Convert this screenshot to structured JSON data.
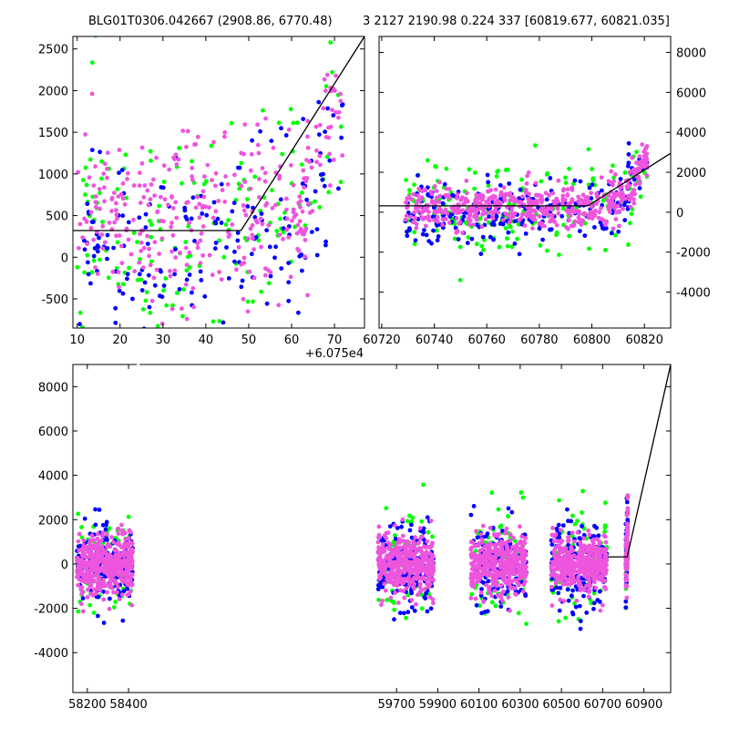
{
  "titles": {
    "left": "BLG01T0306.042667 (2908.86, 6770.48)",
    "right": "3 2127 2190.98 0.224 337 [60819.677, 60821.035]"
  },
  "colors": {
    "green": "#00ff00",
    "blue": "#0000ff",
    "magenta": "#ee55dd",
    "fit": "#000000"
  },
  "chart_data": [
    {
      "id": "zoom-left",
      "type": "scatter",
      "title": "BLG01T0306.042667 (2908.86, 6770.48)",
      "x_offset_label": "+6.075e4",
      "xlim": [
        9,
        77
      ],
      "ylim": [
        -850,
        2650
      ],
      "xticks": [
        10,
        20,
        30,
        40,
        50,
        60,
        70
      ],
      "yticks": [
        -500,
        0,
        500,
        1000,
        1500,
        2000,
        2500
      ],
      "ytick_side": "left",
      "series": [
        {
          "name": "green",
          "color": "#00ff00",
          "x_range": [
            10,
            72
          ],
          "y_center": 350,
          "y_spread": 650,
          "count": 150,
          "seed": 11
        },
        {
          "name": "blue",
          "color": "#0000ff",
          "x_range": [
            10,
            72
          ],
          "y_center": 250,
          "y_spread": 500,
          "count": 170,
          "seed": 23
        },
        {
          "name": "magenta",
          "color": "#ee55dd",
          "x_range": [
            10,
            72
          ],
          "y_center": 450,
          "y_spread": 500,
          "count": 330,
          "seed": 37
        }
      ],
      "fit_line": {
        "x": [
          9,
          48.2,
          77
        ],
        "y": [
          320,
          320,
          2650
        ]
      }
    },
    {
      "id": "zoom-right",
      "type": "scatter",
      "title": "3 2127 2190.98 0.224 337 [60819.677, 60821.035]",
      "xlim": [
        60719,
        60830
      ],
      "ylim": [
        -5800,
        8800
      ],
      "xticks": [
        60720,
        60740,
        60760,
        60780,
        60800,
        60820
      ],
      "yticks": [
        -4000,
        -2000,
        0,
        2000,
        4000,
        6000,
        8000
      ],
      "ytick_side": "right",
      "series": [
        {
          "name": "green",
          "color": "#00ff00",
          "x_range": [
            60729,
            60821
          ],
          "y_center": 100,
          "y_spread": 1100,
          "count": 180,
          "seed": 51
        },
        {
          "name": "blue",
          "color": "#0000ff",
          "x_range": [
            60729,
            60821
          ],
          "y_center": 0,
          "y_spread": 800,
          "count": 240,
          "seed": 63
        },
        {
          "name": "magenta",
          "color": "#ee55dd",
          "x_range": [
            60729,
            60821
          ],
          "y_center": 250,
          "y_spread": 550,
          "count": 520,
          "seed": 77
        }
      ],
      "fit_line": {
        "x": [
          60719,
          60798.5,
          60830
        ],
        "y": [
          320,
          320,
          2950
        ]
      }
    },
    {
      "id": "full-lightcurve",
      "type": "scatter",
      "xlim": [
        58130,
        61030
      ],
      "ylim": [
        -5800,
        9000
      ],
      "xticks": [
        58200,
        58400,
        59700,
        59900,
        60100,
        60300,
        60500,
        60700,
        60900
      ],
      "yticks": [
        -4000,
        -2000,
        0,
        2000,
        4000,
        6000,
        8000
      ],
      "ytick_side": "left",
      "seasons": [
        {
          "x_range": [
            58150,
            58420
          ]
        },
        {
          "x_range": [
            59610,
            59880
          ]
        },
        {
          "x_range": [
            60060,
            60330
          ]
        },
        {
          "x_range": [
            60450,
            60720
          ]
        },
        {
          "x_range": [
            60812,
            60822
          ]
        }
      ],
      "series": [
        {
          "name": "green",
          "color": "#00ff00",
          "y_center": 0,
          "y_spread": 1600,
          "count": 300,
          "seed": 91
        },
        {
          "name": "blue",
          "color": "#0000ff",
          "y_center": -100,
          "y_spread": 1100,
          "count": 700,
          "seed": 103
        },
        {
          "name": "magenta",
          "color": "#ee55dd",
          "y_center": 0,
          "y_spread": 800,
          "count": 1800,
          "seed": 117
        }
      ],
      "fit_line": {
        "x": [
          60725,
          60819,
          61030
        ],
        "y": [
          320,
          320,
          9000
        ]
      }
    }
  ]
}
